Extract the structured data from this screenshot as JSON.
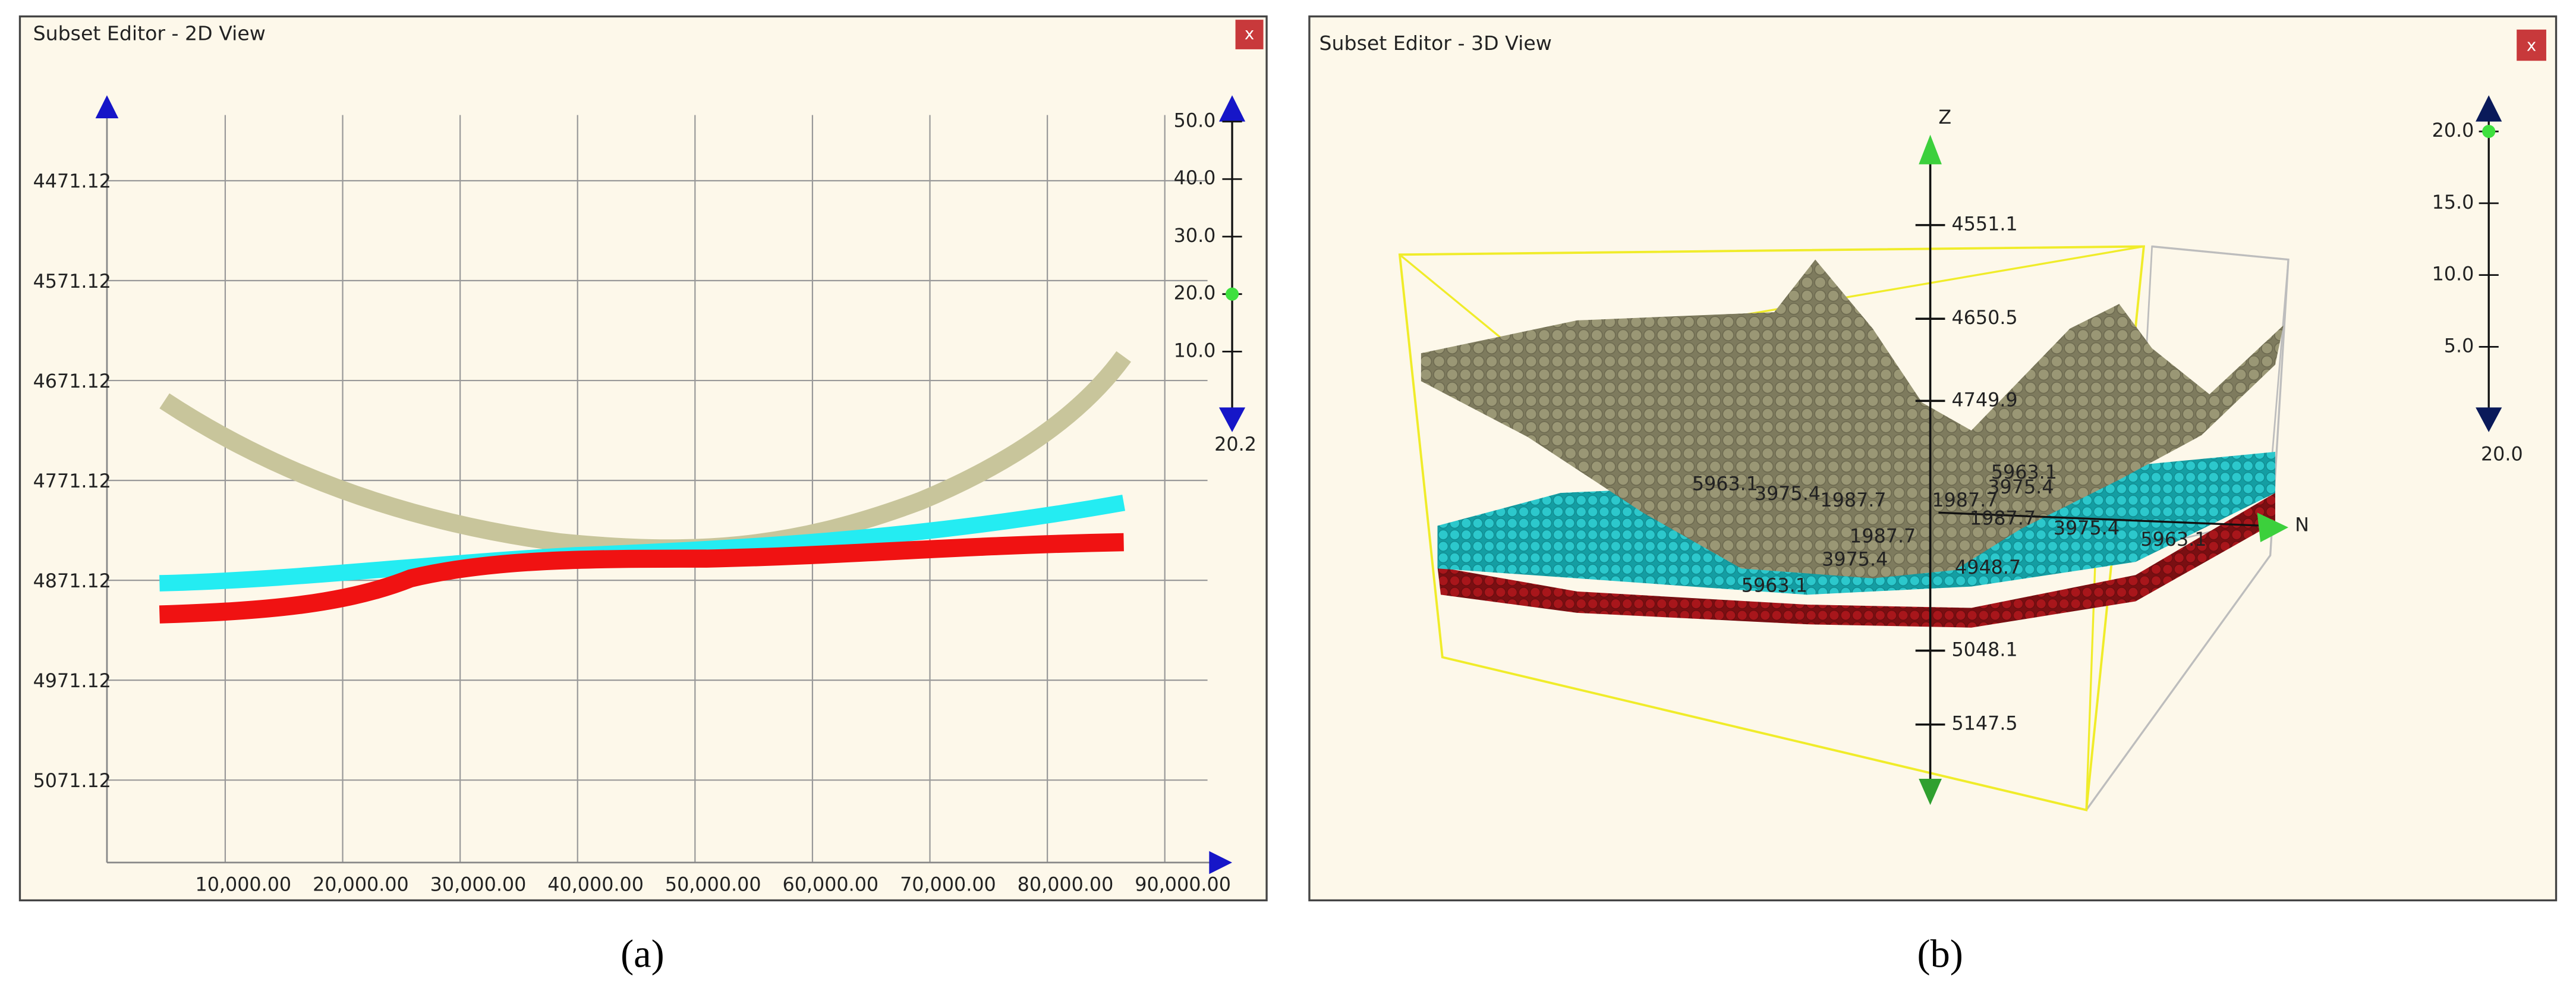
{
  "panels": [
    {
      "window_title": "Subset Editor - 2D View",
      "close": "x",
      "y_axis_labels": [
        "4471.12",
        "4571.12",
        "4671.12",
        "4771.12",
        "4871.12",
        "4971.12",
        "5071.12"
      ],
      "x_axis_labels": [
        "10,000.00",
        "20,000.00",
        "30,000.00",
        "40,000.00",
        "50,000.00",
        "60,000.00",
        "70,000.00",
        "80,000.00",
        "90,000.00"
      ],
      "slider_labels": [
        "50.0",
        "40.0",
        "30.0",
        "20.0",
        "10.0"
      ],
      "slider_value": "20.2",
      "caption": "(a)"
    },
    {
      "window_title": "Subset Editor - 3D View",
      "close": "x",
      "z_axis_label": "Z",
      "z_axis_ticks": [
        "4551.1",
        "4650.5",
        "4749.9",
        "5048.1",
        "5147.5"
      ],
      "n_axis_label": "N",
      "grid_labels": [
        "5963.1",
        "3975.4",
        "1987.7",
        "1987.7",
        "3975.4",
        "5963.1",
        "1987.7",
        "3975.4",
        "5963.1",
        "1987.7",
        "3975.4",
        "5963.1",
        "4948.7"
      ],
      "slider_labels": [
        "20.0",
        "15.0",
        "10.0",
        "5.0"
      ],
      "slider_value": "20.0",
      "caption": "(b)"
    }
  ]
}
